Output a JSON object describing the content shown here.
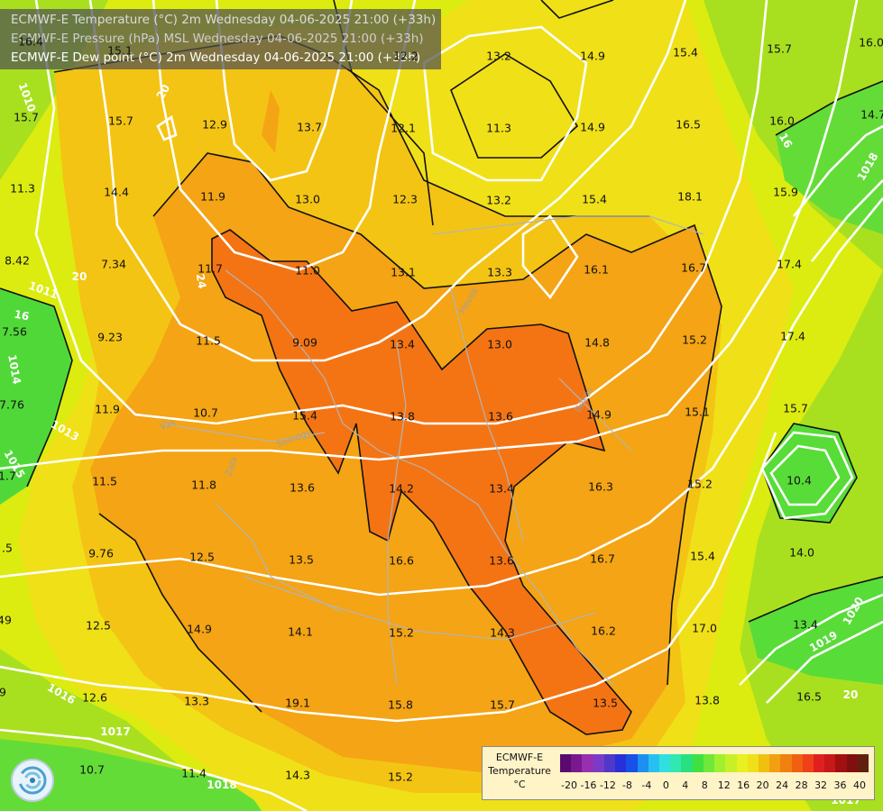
{
  "header": {
    "line1": "ECMWF-E Temperature (°C) 2m Wednesday 04-06-2025 21:00 (+33h)",
    "line2": "ECMWF-E Pressure (hPa) MSL Wednesday 04-06-2025 21:00 (+33h)",
    "line3": "ECMWF-E Dew point (°C) 2m Wednesday 04-06-2025 21:00 (+33h)"
  },
  "values": [
    {
      "id": "v1",
      "text": "16.4"
    },
    {
      "id": "v2",
      "text": "15.1"
    },
    {
      "id": "v3",
      "text": "12.2"
    },
    {
      "id": "v4",
      "text": "13.2"
    },
    {
      "id": "v5",
      "text": "14.9"
    },
    {
      "id": "v6",
      "text": "15.4"
    },
    {
      "id": "v7",
      "text": "15.7"
    },
    {
      "id": "v8",
      "text": "16.0"
    },
    {
      "id": "v9",
      "text": "15.7"
    },
    {
      "id": "v10",
      "text": "15.7"
    },
    {
      "id": "v11",
      "text": "12.9"
    },
    {
      "id": "v12",
      "text": "13.7"
    },
    {
      "id": "v13",
      "text": "12.1"
    },
    {
      "id": "v14",
      "text": "11.3"
    },
    {
      "id": "v15",
      "text": "14.9"
    },
    {
      "id": "v16",
      "text": "16.5"
    },
    {
      "id": "v17",
      "text": "16.0"
    },
    {
      "id": "v18",
      "text": "14.7"
    },
    {
      "id": "v19",
      "text": "11.3"
    },
    {
      "id": "v20",
      "text": "14.4"
    },
    {
      "id": "v21",
      "text": "11.9"
    },
    {
      "id": "v22",
      "text": "13.0"
    },
    {
      "id": "v23",
      "text": "12.3"
    },
    {
      "id": "v24",
      "text": "13.2"
    },
    {
      "id": "v25",
      "text": "15.4"
    },
    {
      "id": "v26",
      "text": "18.1"
    },
    {
      "id": "v27",
      "text": "15.9"
    },
    {
      "id": "v28",
      "text": "8.42"
    },
    {
      "id": "v29",
      "text": "7.34"
    },
    {
      "id": "v30",
      "text": "11.7"
    },
    {
      "id": "v31",
      "text": "11.0"
    },
    {
      "id": "v32",
      "text": "13.1"
    },
    {
      "id": "v33",
      "text": "13.3"
    },
    {
      "id": "v34",
      "text": "16.1"
    },
    {
      "id": "v35",
      "text": "16.7"
    },
    {
      "id": "v36",
      "text": "17.4"
    },
    {
      "id": "v37",
      "text": "7.56"
    },
    {
      "id": "v38",
      "text": "9.23"
    },
    {
      "id": "v39",
      "text": "11.5"
    },
    {
      "id": "v40",
      "text": "9.09"
    },
    {
      "id": "v41",
      "text": "13.4"
    },
    {
      "id": "v42",
      "text": "13.0"
    },
    {
      "id": "v43",
      "text": "14.8"
    },
    {
      "id": "v44",
      "text": "15.2"
    },
    {
      "id": "v45",
      "text": "17.4"
    },
    {
      "id": "v46",
      "text": "7.76"
    },
    {
      "id": "v47",
      "text": "11.9"
    },
    {
      "id": "v48",
      "text": "10.7"
    },
    {
      "id": "v49",
      "text": "15.4"
    },
    {
      "id": "v50",
      "text": "13.8"
    },
    {
      "id": "v51",
      "text": "13.6"
    },
    {
      "id": "v52",
      "text": "14.9"
    },
    {
      "id": "v53",
      "text": "15.1"
    },
    {
      "id": "v54",
      "text": "15.7"
    },
    {
      "id": "v55",
      "text": "1.7"
    },
    {
      "id": "v56",
      "text": "11.5"
    },
    {
      "id": "v57",
      "text": "11.8"
    },
    {
      "id": "v58",
      "text": "13.6"
    },
    {
      "id": "v59",
      "text": "14.2"
    },
    {
      "id": "v60",
      "text": "13.4"
    },
    {
      "id": "v61",
      "text": "16.3"
    },
    {
      "id": "v62",
      "text": "15.2"
    },
    {
      "id": "v63",
      "text": "10.4"
    },
    {
      "id": "v64",
      "text": ".5"
    },
    {
      "id": "v65",
      "text": "9.76"
    },
    {
      "id": "v66",
      "text": "12.5"
    },
    {
      "id": "v67",
      "text": "13.5"
    },
    {
      "id": "v68",
      "text": "16.6"
    },
    {
      "id": "v69",
      "text": "13.6"
    },
    {
      "id": "v70",
      "text": "16.7"
    },
    {
      "id": "v71",
      "text": "15.4"
    },
    {
      "id": "v72",
      "text": "14.0"
    },
    {
      "id": "v73",
      "text": "49"
    },
    {
      "id": "v74",
      "text": "12.5"
    },
    {
      "id": "v75",
      "text": "14.9"
    },
    {
      "id": "v76",
      "text": "14.1"
    },
    {
      "id": "v77",
      "text": "15.2"
    },
    {
      "id": "v78",
      "text": "14.3"
    },
    {
      "id": "v79",
      "text": "16.2"
    },
    {
      "id": "v80",
      "text": "17.0"
    },
    {
      "id": "v81",
      "text": "13.4"
    },
    {
      "id": "v82",
      "text": "9"
    },
    {
      "id": "v83",
      "text": "12.6"
    },
    {
      "id": "v84",
      "text": "13.3"
    },
    {
      "id": "v85",
      "text": "19.1"
    },
    {
      "id": "v86",
      "text": "15.8"
    },
    {
      "id": "v87",
      "text": "15.7"
    },
    {
      "id": "v88",
      "text": "13.5"
    },
    {
      "id": "v89",
      "text": "13.8"
    },
    {
      "id": "v90",
      "text": "16.5"
    },
    {
      "id": "v91",
      "text": "10.7"
    },
    {
      "id": "v92",
      "text": "11.4"
    },
    {
      "id": "v93",
      "text": "14.3"
    },
    {
      "id": "v94",
      "text": "15.2"
    }
  ],
  "isobars": [
    {
      "id": "i1",
      "text": "1010"
    },
    {
      "id": "i2",
      "text": "20"
    },
    {
      "id": "i3",
      "text": "1011"
    },
    {
      "id": "i4",
      "text": "20"
    },
    {
      "id": "i5",
      "text": "16"
    },
    {
      "id": "i6",
      "text": "1014"
    },
    {
      "id": "i7",
      "text": "1013"
    },
    {
      "id": "i8",
      "text": "1015"
    },
    {
      "id": "i9",
      "text": "1016"
    },
    {
      "id": "i10",
      "text": "1017"
    },
    {
      "id": "i11",
      "text": "1018"
    },
    {
      "id": "i12",
      "text": "16"
    },
    {
      "id": "i13",
      "text": "1018"
    },
    {
      "id": "i14",
      "text": "1020"
    },
    {
      "id": "i15",
      "text": "1019"
    },
    {
      "id": "i16",
      "text": "20"
    },
    {
      "id": "i17",
      "text": "1017"
    },
    {
      "id": "i18",
      "text": "24"
    }
  ],
  "rivers": [
    {
      "id": "r1",
      "text": "Vas"
    },
    {
      "id": "r2",
      "text": "Somogy"
    },
    {
      "id": "r3",
      "text": "Zala"
    },
    {
      "id": "r4",
      "text": "Heves"
    },
    {
      "id": "r5",
      "text": "Békés"
    }
  ],
  "legend": {
    "line1": "ECMWF-E",
    "line2": "Temperature",
    "line3": "°C",
    "colors": [
      "#5a0a6e",
      "#7a1890",
      "#9630b0",
      "#7a3cc8",
      "#5038c8",
      "#2830d8",
      "#1850e8",
      "#1c90f0",
      "#28c0f0",
      "#30e0e0",
      "#30e8b0",
      "#28e080",
      "#40e040",
      "#70e838",
      "#a0f030",
      "#c8f028",
      "#e8f020",
      "#f0e018",
      "#f0c010",
      "#f0a010",
      "#f08010",
      "#f06010",
      "#f04018",
      "#e02020",
      "#c81818",
      "#a01010",
      "#801010",
      "#602010"
    ],
    "ticks": [
      "-20",
      "-16",
      "-12",
      "-8",
      "-4",
      "0",
      "4",
      "8",
      "12",
      "16",
      "20",
      "24",
      "28",
      "32",
      "36",
      "40"
    ]
  }
}
